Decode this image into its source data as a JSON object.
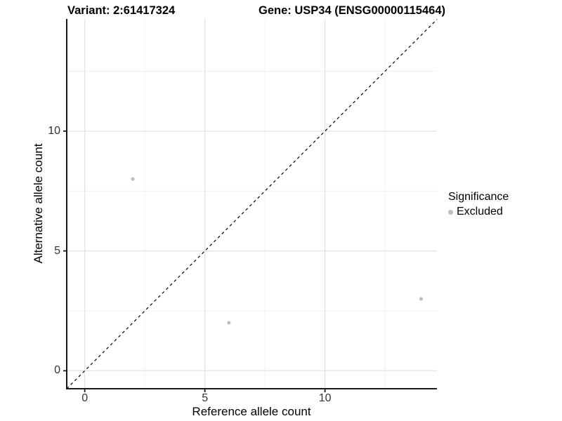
{
  "titles": {
    "variant": "Variant: 2:61417324",
    "gene": "Gene: USP34 (ENSG00000115464)"
  },
  "chart_data": {
    "type": "scatter",
    "xlabel": "Reference allele count",
    "ylabel": "Alternative allele count",
    "xlim": [
      -0.75,
      14.66
    ],
    "ylim": [
      -0.75,
      14.68
    ],
    "xticks": [
      0,
      5,
      10
    ],
    "yticks": [
      0,
      5,
      10
    ],
    "minor_gridlines_x": [
      2.5,
      7.5,
      12.5
    ],
    "minor_gridlines_y": [
      2.5,
      7.5,
      12.5
    ],
    "grid": "on",
    "identity_line": {
      "style": "dashed",
      "slope": 1,
      "intercept": 0
    },
    "series": [
      {
        "name": "Excluded",
        "color": "#bebebe",
        "points": [
          [
            2,
            8
          ],
          [
            6,
            2
          ],
          [
            14,
            3
          ]
        ]
      }
    ],
    "legend": {
      "title": "Significance",
      "position": "right",
      "items": [
        {
          "label": "Excluded",
          "color": "#bebebe"
        }
      ]
    }
  },
  "colors": {
    "background": "#ffffff",
    "point": "#bebebe",
    "grid_major": "#e3e3e3",
    "grid_minor": "#f1f1f1",
    "axis": "#1a1a1a",
    "identity_line": "#000000",
    "tick_label": "#333333",
    "text": "#000000"
  }
}
